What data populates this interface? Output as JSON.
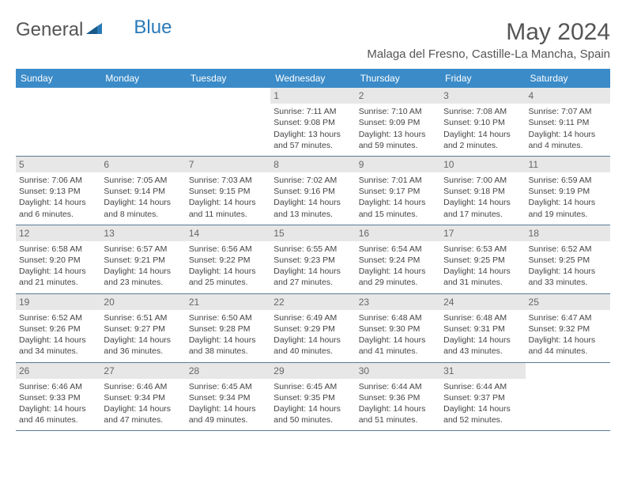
{
  "logo": {
    "text1": "General",
    "text2": "Blue"
  },
  "title": "May 2024",
  "location": "Malaga del Fresno, Castille-La Mancha, Spain",
  "colors": {
    "header_bg": "#3b8bc8",
    "header_text": "#ffffff",
    "daynum_bg": "#e7e7e7",
    "daynum_text": "#666666",
    "border": "#5a7a94",
    "body_text": "#444444",
    "title_text": "#555555",
    "logo_blue": "#2a7ab8"
  },
  "weekdays": [
    "Sunday",
    "Monday",
    "Tuesday",
    "Wednesday",
    "Thursday",
    "Friday",
    "Saturday"
  ],
  "weeks": [
    [
      {
        "day": "",
        "sunrise": "",
        "sunset": "",
        "daylight": ""
      },
      {
        "day": "",
        "sunrise": "",
        "sunset": "",
        "daylight": ""
      },
      {
        "day": "",
        "sunrise": "",
        "sunset": "",
        "daylight": ""
      },
      {
        "day": "1",
        "sunrise": "Sunrise: 7:11 AM",
        "sunset": "Sunset: 9:08 PM",
        "daylight": "Daylight: 13 hours and 57 minutes."
      },
      {
        "day": "2",
        "sunrise": "Sunrise: 7:10 AM",
        "sunset": "Sunset: 9:09 PM",
        "daylight": "Daylight: 13 hours and 59 minutes."
      },
      {
        "day": "3",
        "sunrise": "Sunrise: 7:08 AM",
        "sunset": "Sunset: 9:10 PM",
        "daylight": "Daylight: 14 hours and 2 minutes."
      },
      {
        "day": "4",
        "sunrise": "Sunrise: 7:07 AM",
        "sunset": "Sunset: 9:11 PM",
        "daylight": "Daylight: 14 hours and 4 minutes."
      }
    ],
    [
      {
        "day": "5",
        "sunrise": "Sunrise: 7:06 AM",
        "sunset": "Sunset: 9:13 PM",
        "daylight": "Daylight: 14 hours and 6 minutes."
      },
      {
        "day": "6",
        "sunrise": "Sunrise: 7:05 AM",
        "sunset": "Sunset: 9:14 PM",
        "daylight": "Daylight: 14 hours and 8 minutes."
      },
      {
        "day": "7",
        "sunrise": "Sunrise: 7:03 AM",
        "sunset": "Sunset: 9:15 PM",
        "daylight": "Daylight: 14 hours and 11 minutes."
      },
      {
        "day": "8",
        "sunrise": "Sunrise: 7:02 AM",
        "sunset": "Sunset: 9:16 PM",
        "daylight": "Daylight: 14 hours and 13 minutes."
      },
      {
        "day": "9",
        "sunrise": "Sunrise: 7:01 AM",
        "sunset": "Sunset: 9:17 PM",
        "daylight": "Daylight: 14 hours and 15 minutes."
      },
      {
        "day": "10",
        "sunrise": "Sunrise: 7:00 AM",
        "sunset": "Sunset: 9:18 PM",
        "daylight": "Daylight: 14 hours and 17 minutes."
      },
      {
        "day": "11",
        "sunrise": "Sunrise: 6:59 AM",
        "sunset": "Sunset: 9:19 PM",
        "daylight": "Daylight: 14 hours and 19 minutes."
      }
    ],
    [
      {
        "day": "12",
        "sunrise": "Sunrise: 6:58 AM",
        "sunset": "Sunset: 9:20 PM",
        "daylight": "Daylight: 14 hours and 21 minutes."
      },
      {
        "day": "13",
        "sunrise": "Sunrise: 6:57 AM",
        "sunset": "Sunset: 9:21 PM",
        "daylight": "Daylight: 14 hours and 23 minutes."
      },
      {
        "day": "14",
        "sunrise": "Sunrise: 6:56 AM",
        "sunset": "Sunset: 9:22 PM",
        "daylight": "Daylight: 14 hours and 25 minutes."
      },
      {
        "day": "15",
        "sunrise": "Sunrise: 6:55 AM",
        "sunset": "Sunset: 9:23 PM",
        "daylight": "Daylight: 14 hours and 27 minutes."
      },
      {
        "day": "16",
        "sunrise": "Sunrise: 6:54 AM",
        "sunset": "Sunset: 9:24 PM",
        "daylight": "Daylight: 14 hours and 29 minutes."
      },
      {
        "day": "17",
        "sunrise": "Sunrise: 6:53 AM",
        "sunset": "Sunset: 9:25 PM",
        "daylight": "Daylight: 14 hours and 31 minutes."
      },
      {
        "day": "18",
        "sunrise": "Sunrise: 6:52 AM",
        "sunset": "Sunset: 9:25 PM",
        "daylight": "Daylight: 14 hours and 33 minutes."
      }
    ],
    [
      {
        "day": "19",
        "sunrise": "Sunrise: 6:52 AM",
        "sunset": "Sunset: 9:26 PM",
        "daylight": "Daylight: 14 hours and 34 minutes."
      },
      {
        "day": "20",
        "sunrise": "Sunrise: 6:51 AM",
        "sunset": "Sunset: 9:27 PM",
        "daylight": "Daylight: 14 hours and 36 minutes."
      },
      {
        "day": "21",
        "sunrise": "Sunrise: 6:50 AM",
        "sunset": "Sunset: 9:28 PM",
        "daylight": "Daylight: 14 hours and 38 minutes."
      },
      {
        "day": "22",
        "sunrise": "Sunrise: 6:49 AM",
        "sunset": "Sunset: 9:29 PM",
        "daylight": "Daylight: 14 hours and 40 minutes."
      },
      {
        "day": "23",
        "sunrise": "Sunrise: 6:48 AM",
        "sunset": "Sunset: 9:30 PM",
        "daylight": "Daylight: 14 hours and 41 minutes."
      },
      {
        "day": "24",
        "sunrise": "Sunrise: 6:48 AM",
        "sunset": "Sunset: 9:31 PM",
        "daylight": "Daylight: 14 hours and 43 minutes."
      },
      {
        "day": "25",
        "sunrise": "Sunrise: 6:47 AM",
        "sunset": "Sunset: 9:32 PM",
        "daylight": "Daylight: 14 hours and 44 minutes."
      }
    ],
    [
      {
        "day": "26",
        "sunrise": "Sunrise: 6:46 AM",
        "sunset": "Sunset: 9:33 PM",
        "daylight": "Daylight: 14 hours and 46 minutes."
      },
      {
        "day": "27",
        "sunrise": "Sunrise: 6:46 AM",
        "sunset": "Sunset: 9:34 PM",
        "daylight": "Daylight: 14 hours and 47 minutes."
      },
      {
        "day": "28",
        "sunrise": "Sunrise: 6:45 AM",
        "sunset": "Sunset: 9:34 PM",
        "daylight": "Daylight: 14 hours and 49 minutes."
      },
      {
        "day": "29",
        "sunrise": "Sunrise: 6:45 AM",
        "sunset": "Sunset: 9:35 PM",
        "daylight": "Daylight: 14 hours and 50 minutes."
      },
      {
        "day": "30",
        "sunrise": "Sunrise: 6:44 AM",
        "sunset": "Sunset: 9:36 PM",
        "daylight": "Daylight: 14 hours and 51 minutes."
      },
      {
        "day": "31",
        "sunrise": "Sunrise: 6:44 AM",
        "sunset": "Sunset: 9:37 PM",
        "daylight": "Daylight: 14 hours and 52 minutes."
      },
      {
        "day": "",
        "sunrise": "",
        "sunset": "",
        "daylight": ""
      }
    ]
  ]
}
